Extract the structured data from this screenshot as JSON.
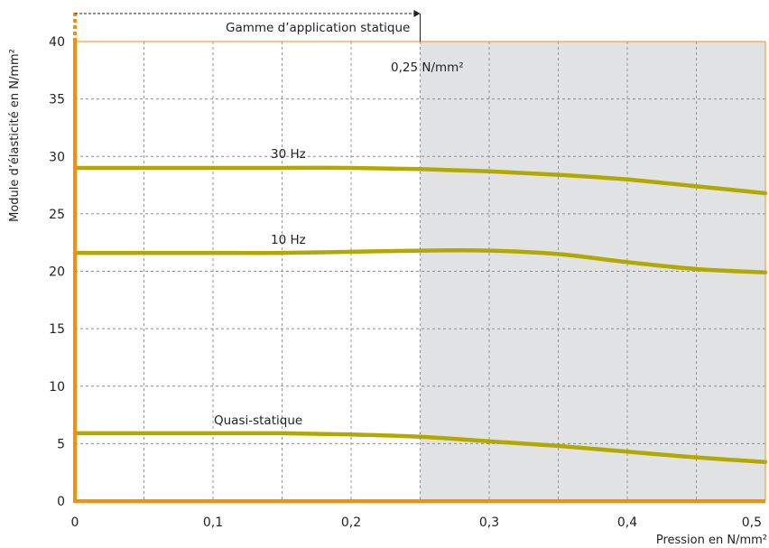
{
  "chart_data": {
    "type": "line",
    "xlabel": "Pression en N/mm²",
    "ylabel": "Module d’élasticité en N/mm²",
    "xlim": [
      0,
      0.5
    ],
    "ylim": [
      0,
      40
    ],
    "x_ticks": [
      {
        "value": 0,
        "label": "0"
      },
      {
        "value": 0.1,
        "label": "0,1"
      },
      {
        "value": 0.2,
        "label": "0,2"
      },
      {
        "value": 0.3,
        "label": "0,3"
      },
      {
        "value": 0.4,
        "label": "0,4"
      },
      {
        "value": 0.5,
        "label": "0,5"
      }
    ],
    "y_ticks": [
      {
        "value": 0,
        "label": "0"
      },
      {
        "value": 5,
        "label": "5"
      },
      {
        "value": 10,
        "label": "10"
      },
      {
        "value": 15,
        "label": "15"
      },
      {
        "value": 20,
        "label": "20"
      },
      {
        "value": 25,
        "label": "25"
      },
      {
        "value": 30,
        "label": "30"
      },
      {
        "value": 35,
        "label": "35"
      },
      {
        "value": 40,
        "label": "40"
      }
    ],
    "grid_x": [
      0.05,
      0.1,
      0.15,
      0.2,
      0.25,
      0.3,
      0.35,
      0.4,
      0.45
    ],
    "grid_y": [
      5,
      10,
      15,
      20,
      25,
      30,
      35
    ],
    "grid": true,
    "series": [
      {
        "name": "30 Hz",
        "x": [
          0,
          0.05,
          0.1,
          0.15,
          0.2,
          0.25,
          0.3,
          0.35,
          0.4,
          0.45,
          0.5
        ],
        "y": [
          29.0,
          29.0,
          29.0,
          29.0,
          29.0,
          28.9,
          28.7,
          28.4,
          28.0,
          27.4,
          26.8
        ]
      },
      {
        "name": "10 Hz",
        "x": [
          0,
          0.05,
          0.1,
          0.15,
          0.2,
          0.25,
          0.3,
          0.35,
          0.4,
          0.45,
          0.5
        ],
        "y": [
          21.6,
          21.6,
          21.6,
          21.6,
          21.7,
          21.8,
          21.8,
          21.5,
          20.8,
          20.2,
          19.9
        ]
      },
      {
        "name": "Quasi-statique",
        "x": [
          0,
          0.05,
          0.1,
          0.15,
          0.2,
          0.25,
          0.3,
          0.35,
          0.4,
          0.45,
          0.5
        ],
        "y": [
          5.9,
          5.9,
          5.9,
          5.9,
          5.8,
          5.6,
          5.2,
          4.8,
          4.3,
          3.8,
          3.4
        ]
      }
    ],
    "shaded_region": {
      "x_from": 0.25,
      "x_to": 0.5
    },
    "annotations": {
      "static_range": "Gamme d’application statique",
      "threshold": "0,25 N/mm²"
    },
    "colors": {
      "curve": "#b3a800",
      "axis": "#f0900d",
      "shade": "#e1e2e3",
      "grid": "#8c8c8c"
    }
  }
}
